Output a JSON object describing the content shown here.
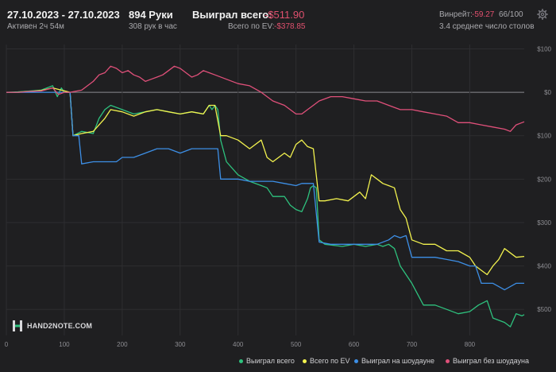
{
  "header": {
    "date_range": "27.10.2023 - 27.10.2023",
    "active": "Активен 2ч 54м",
    "hands": "894 Руки",
    "hands_per_hour": "308 рук в час",
    "won_total_label": "Выиграл всего:",
    "won_total_value": "-$511.90",
    "ev_total_label": "Всего по EV:",
    "ev_total_value": "-$378.85",
    "winrate_label": "Винрейт:",
    "winrate_value": "-59.27",
    "winrate_unit": "66/100",
    "avg_tables": "3.4 среднее число столов"
  },
  "logo": {
    "text": "HAND2NOTE.COM"
  },
  "colors": {
    "background": "#1f1f21",
    "grid": "#2e2e31",
    "won": "#2ec27e",
    "ev": "#f2f24e",
    "showdown": "#3d8fe6",
    "nonshowdown": "#e0507a"
  },
  "chart_data": {
    "type": "line",
    "xlim": [
      0,
      894
    ],
    "ylim": [
      -560,
      110
    ],
    "x_ticks": [
      0,
      100,
      200,
      300,
      400,
      500,
      600,
      700,
      800
    ],
    "y_ticks": [
      100,
      0,
      -100,
      -200,
      -300,
      -400,
      -500
    ],
    "y_tick_labels": [
      "$100",
      "$0",
      "$100",
      "$200",
      "$300",
      "$400",
      "$500"
    ],
    "series": [
      {
        "name": "Выиграл всего",
        "color": "#2ec27e",
        "points": [
          [
            0,
            0
          ],
          [
            20,
            1
          ],
          [
            40,
            3
          ],
          [
            60,
            5
          ],
          [
            80,
            15
          ],
          [
            88,
            -10
          ],
          [
            95,
            10
          ],
          [
            100,
            0
          ],
          [
            110,
            0
          ],
          [
            115,
            -100
          ],
          [
            130,
            -90
          ],
          [
            150,
            -95
          ],
          [
            160,
            -60
          ],
          [
            170,
            -40
          ],
          [
            180,
            -30
          ],
          [
            200,
            -40
          ],
          [
            220,
            -50
          ],
          [
            240,
            -45
          ],
          [
            260,
            -40
          ],
          [
            280,
            -45
          ],
          [
            300,
            -50
          ],
          [
            320,
            -45
          ],
          [
            340,
            -50
          ],
          [
            350,
            -30
          ],
          [
            355,
            -40
          ],
          [
            360,
            -30
          ],
          [
            365,
            -40
          ],
          [
            370,
            -110
          ],
          [
            380,
            -160
          ],
          [
            400,
            -190
          ],
          [
            420,
            -205
          ],
          [
            440,
            -215
          ],
          [
            450,
            -220
          ],
          [
            460,
            -240
          ],
          [
            480,
            -240
          ],
          [
            490,
            -260
          ],
          [
            500,
            -270
          ],
          [
            510,
            -275
          ],
          [
            520,
            -245
          ],
          [
            525,
            -220
          ],
          [
            530,
            -215
          ],
          [
            535,
            -220
          ],
          [
            540,
            -340
          ],
          [
            550,
            -350
          ],
          [
            580,
            -355
          ],
          [
            600,
            -350
          ],
          [
            620,
            -355
          ],
          [
            640,
            -350
          ],
          [
            650,
            -355
          ],
          [
            660,
            -350
          ],
          [
            670,
            -360
          ],
          [
            675,
            -380
          ],
          [
            680,
            -400
          ],
          [
            700,
            -440
          ],
          [
            720,
            -490
          ],
          [
            740,
            -490
          ],
          [
            760,
            -500
          ],
          [
            780,
            -510
          ],
          [
            800,
            -505
          ],
          [
            815,
            -490
          ],
          [
            830,
            -480
          ],
          [
            840,
            -520
          ],
          [
            860,
            -530
          ],
          [
            870,
            -540
          ],
          [
            880,
            -510
          ],
          [
            890,
            -515
          ],
          [
            894,
            -512
          ]
        ]
      },
      {
        "name": "Всего по EV",
        "color": "#f2f24e",
        "points": [
          [
            0,
            0
          ],
          [
            20,
            0
          ],
          [
            40,
            2
          ],
          [
            60,
            4
          ],
          [
            80,
            10
          ],
          [
            95,
            5
          ],
          [
            110,
            0
          ],
          [
            115,
            -100
          ],
          [
            130,
            -95
          ],
          [
            150,
            -90
          ],
          [
            170,
            -60
          ],
          [
            180,
            -40
          ],
          [
            200,
            -45
          ],
          [
            220,
            -55
          ],
          [
            240,
            -45
          ],
          [
            260,
            -40
          ],
          [
            280,
            -45
          ],
          [
            300,
            -50
          ],
          [
            320,
            -45
          ],
          [
            340,
            -50
          ],
          [
            350,
            -30
          ],
          [
            360,
            -30
          ],
          [
            370,
            -100
          ],
          [
            380,
            -100
          ],
          [
            400,
            -110
          ],
          [
            420,
            -130
          ],
          [
            440,
            -110
          ],
          [
            450,
            -150
          ],
          [
            460,
            -160
          ],
          [
            480,
            -140
          ],
          [
            490,
            -150
          ],
          [
            500,
            -120
          ],
          [
            510,
            -110
          ],
          [
            520,
            -125
          ],
          [
            530,
            -130
          ],
          [
            540,
            -250
          ],
          [
            550,
            -250
          ],
          [
            570,
            -245
          ],
          [
            590,
            -250
          ],
          [
            600,
            -240
          ],
          [
            610,
            -230
          ],
          [
            620,
            -245
          ],
          [
            630,
            -190
          ],
          [
            640,
            -200
          ],
          [
            650,
            -210
          ],
          [
            660,
            -215
          ],
          [
            670,
            -220
          ],
          [
            680,
            -270
          ],
          [
            690,
            -290
          ],
          [
            700,
            -340
          ],
          [
            720,
            -350
          ],
          [
            740,
            -350
          ],
          [
            760,
            -365
          ],
          [
            780,
            -365
          ],
          [
            800,
            -380
          ],
          [
            810,
            -400
          ],
          [
            820,
            -410
          ],
          [
            830,
            -420
          ],
          [
            840,
            -400
          ],
          [
            850,
            -385
          ],
          [
            860,
            -360
          ],
          [
            870,
            -370
          ],
          [
            880,
            -380
          ],
          [
            894,
            -378
          ]
        ]
      },
      {
        "name": "Выиграл на шоудауне",
        "color": "#3d8fe6",
        "points": [
          [
            0,
            0
          ],
          [
            20,
            0
          ],
          [
            40,
            0
          ],
          [
            60,
            0
          ],
          [
            80,
            0
          ],
          [
            95,
            0
          ],
          [
            110,
            0
          ],
          [
            115,
            -100
          ],
          [
            125,
            -100
          ],
          [
            130,
            -165
          ],
          [
            150,
            -160
          ],
          [
            170,
            -160
          ],
          [
            190,
            -160
          ],
          [
            200,
            -150
          ],
          [
            220,
            -150
          ],
          [
            240,
            -140
          ],
          [
            260,
            -130
          ],
          [
            280,
            -130
          ],
          [
            300,
            -140
          ],
          [
            320,
            -130
          ],
          [
            340,
            -130
          ],
          [
            350,
            -130
          ],
          [
            360,
            -130
          ],
          [
            365,
            -130
          ],
          [
            370,
            -200
          ],
          [
            400,
            -200
          ],
          [
            420,
            -205
          ],
          [
            440,
            -205
          ],
          [
            460,
            -205
          ],
          [
            480,
            -210
          ],
          [
            500,
            -215
          ],
          [
            510,
            -210
          ],
          [
            520,
            -210
          ],
          [
            530,
            -210
          ],
          [
            540,
            -345
          ],
          [
            560,
            -350
          ],
          [
            600,
            -350
          ],
          [
            620,
            -350
          ],
          [
            640,
            -350
          ],
          [
            660,
            -340
          ],
          [
            670,
            -330
          ],
          [
            680,
            -335
          ],
          [
            690,
            -330
          ],
          [
            700,
            -380
          ],
          [
            720,
            -380
          ],
          [
            740,
            -380
          ],
          [
            760,
            -385
          ],
          [
            780,
            -390
          ],
          [
            800,
            -400
          ],
          [
            810,
            -400
          ],
          [
            820,
            -440
          ],
          [
            840,
            -440
          ],
          [
            860,
            -455
          ],
          [
            880,
            -440
          ],
          [
            894,
            -440
          ]
        ]
      },
      {
        "name": "Выиграл без шоудауна",
        "color": "#e0507a",
        "points": [
          [
            0,
            0
          ],
          [
            20,
            0
          ],
          [
            40,
            2
          ],
          [
            60,
            3
          ],
          [
            80,
            10
          ],
          [
            90,
            -5
          ],
          [
            100,
            0
          ],
          [
            110,
            0
          ],
          [
            130,
            5
          ],
          [
            150,
            25
          ],
          [
            160,
            40
          ],
          [
            170,
            45
          ],
          [
            180,
            60
          ],
          [
            190,
            55
          ],
          [
            200,
            45
          ],
          [
            210,
            50
          ],
          [
            220,
            40
          ],
          [
            230,
            35
          ],
          [
            240,
            25
          ],
          [
            250,
            30
          ],
          [
            260,
            35
          ],
          [
            270,
            40
          ],
          [
            280,
            50
          ],
          [
            290,
            60
          ],
          [
            300,
            55
          ],
          [
            310,
            45
          ],
          [
            320,
            35
          ],
          [
            330,
            40
          ],
          [
            340,
            50
          ],
          [
            350,
            45
          ],
          [
            360,
            40
          ],
          [
            380,
            30
          ],
          [
            400,
            20
          ],
          [
            420,
            15
          ],
          [
            440,
            0
          ],
          [
            460,
            -20
          ],
          [
            480,
            -30
          ],
          [
            500,
            -50
          ],
          [
            510,
            -50
          ],
          [
            520,
            -40
          ],
          [
            530,
            -30
          ],
          [
            540,
            -20
          ],
          [
            560,
            -10
          ],
          [
            580,
            -10
          ],
          [
            600,
            -15
          ],
          [
            620,
            -20
          ],
          [
            640,
            -20
          ],
          [
            660,
            -30
          ],
          [
            680,
            -40
          ],
          [
            700,
            -40
          ],
          [
            720,
            -45
          ],
          [
            740,
            -50
          ],
          [
            760,
            -55
          ],
          [
            780,
            -70
          ],
          [
            800,
            -70
          ],
          [
            820,
            -75
          ],
          [
            840,
            -80
          ],
          [
            860,
            -85
          ],
          [
            870,
            -90
          ],
          [
            880,
            -75
          ],
          [
            890,
            -70
          ],
          [
            894,
            -68
          ]
        ]
      }
    ]
  }
}
